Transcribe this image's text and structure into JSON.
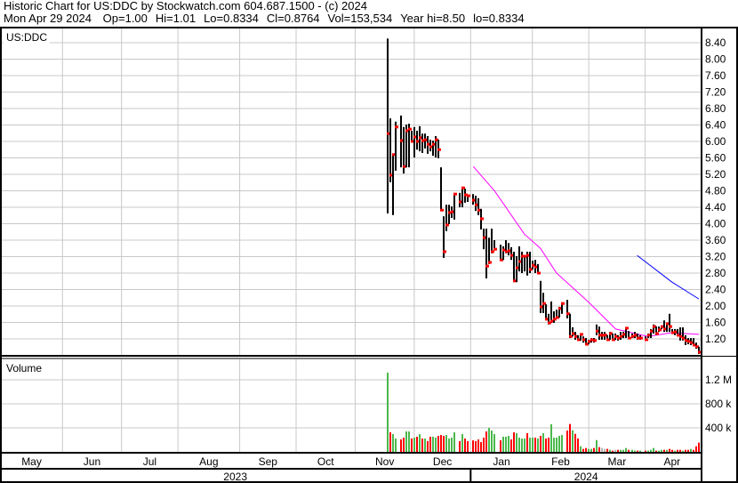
{
  "header": {
    "title": "Historic Chart for US:DDC by Stockwatch.com 604.687.1500 - (c) 2024",
    "date": "Mon Apr 29 2024",
    "open": "Op=1.00",
    "high": "Hi=1.01",
    "low": "Lo=0.8334",
    "close": "Cl=0.8764",
    "volume": "Vol=153,534",
    "year_high": "Year hi=8.50",
    "year_low": "lo=0.8334"
  },
  "symbol_label": "US:DDC",
  "volume_label": "Volume",
  "colors": {
    "grid": "#C8C8C8",
    "bar": "#000000",
    "close_tick": "#FF0000",
    "vol_up": "#4CB84C",
    "vol_down": "#FF0000",
    "vol_flat": "#B4B4B4"
  },
  "chart_data": {
    "type": "ohlc",
    "ylim": [
      0.8,
      8.75
    ],
    "volume_ylim": [
      0,
      1600000
    ],
    "grid": true,
    "price_ticks": [
      "8.40",
      "8.00",
      "7.60",
      "7.20",
      "6.80",
      "6.40",
      "6.00",
      "5.60",
      "5.20",
      "4.80",
      "4.40",
      "4.00",
      "3.60",
      "3.20",
      "2.80",
      "2.40",
      "2.00",
      "1.60",
      "1.20"
    ],
    "volume_ticks": [
      {
        "label": "1.2 M",
        "value": 1200000
      },
      {
        "label": "800 k",
        "value": 800000
      },
      {
        "label": "400 k",
        "value": 400000
      }
    ],
    "x_axis": {
      "months": [
        "May",
        "Jun",
        "Jul",
        "Aug",
        "Sep",
        "Oct",
        "Nov",
        "Dec",
        "Jan",
        "Feb",
        "Mar",
        "Apr"
      ],
      "years": [
        "2023",
        "2024"
      ]
    },
    "dates": [
      "2023-11-17",
      "2023-11-20",
      "2023-11-21",
      "2023-11-22",
      "2023-11-24",
      "2023-11-27",
      "2023-11-28",
      "2023-11-29",
      "2023-11-30",
      "2023-12-01",
      "2023-12-04",
      "2023-12-05",
      "2023-12-06",
      "2023-12-07",
      "2023-12-08",
      "2023-12-11",
      "2023-12-12",
      "2023-12-13",
      "2023-12-14",
      "2023-12-15",
      "2023-12-18",
      "2023-12-19",
      "2023-12-20",
      "2023-12-21",
      "2023-12-22",
      "2023-12-26",
      "2023-12-27",
      "2023-12-28",
      "2023-12-29",
      "2024-01-02",
      "2024-01-03",
      "2024-01-04",
      "2024-01-05",
      "2024-01-08",
      "2024-01-09",
      "2024-01-10",
      "2024-01-11",
      "2024-01-12",
      "2024-01-16",
      "2024-01-17",
      "2024-01-18",
      "2024-01-19",
      "2024-01-22",
      "2024-01-23",
      "2024-01-24",
      "2024-01-25",
      "2024-01-26",
      "2024-01-29",
      "2024-01-30",
      "2024-01-31",
      "2024-02-01",
      "2024-02-02",
      "2024-02-05",
      "2024-02-06",
      "2024-02-07",
      "2024-02-08",
      "2024-02-09",
      "2024-02-12",
      "2024-02-13",
      "2024-02-14",
      "2024-02-15",
      "2024-02-16",
      "2024-02-20",
      "2024-02-21",
      "2024-02-22",
      "2024-02-23",
      "2024-02-26",
      "2024-02-27",
      "2024-02-28",
      "2024-02-29",
      "2024-03-01",
      "2024-03-04",
      "2024-03-05",
      "2024-03-06",
      "2024-03-07",
      "2024-03-08",
      "2024-03-11",
      "2024-03-12",
      "2024-03-13",
      "2024-03-14",
      "2024-03-15",
      "2024-03-18",
      "2024-03-19",
      "2024-03-20",
      "2024-03-21",
      "2024-03-22",
      "2024-03-25",
      "2024-03-26",
      "2024-03-27",
      "2024-03-28",
      "2024-04-01",
      "2024-04-02",
      "2024-04-03",
      "2024-04-04",
      "2024-04-05",
      "2024-04-08",
      "2024-04-09",
      "2024-04-10",
      "2024-04-11",
      "2024-04-12",
      "2024-04-15",
      "2024-04-16",
      "2024-04-17",
      "2024-04-18",
      "2024-04-19",
      "2024-04-22",
      "2024-04-23",
      "2024-04-24",
      "2024-04-25",
      "2024-04-26",
      "2024-04-29"
    ],
    "high": [
      8.5,
      6.56,
      5.7,
      6.48,
      6.63,
      6.35,
      6.41,
      6.43,
      6.26,
      6.35,
      6.26,
      6.37,
      6.19,
      6.19,
      6.13,
      6.04,
      6.02,
      6.13,
      6.04,
      5.37,
      4.18,
      4.46,
      4.46,
      4.42,
      4.75,
      4.75,
      4.9,
      4.85,
      4.68,
      4.72,
      4.68,
      4.62,
      4.36,
      3.88,
      3.88,
      3.66,
      3.88,
      3.6,
      3.49,
      3.45,
      3.6,
      3.53,
      3.43,
      3.32,
      3.21,
      3.45,
      3.32,
      3.21,
      3.32,
      3.32,
      3.1,
      3.12,
      3.02,
      2.61,
      2.32,
      2.04,
      1.81,
      2.11,
      1.87,
      1.91,
      1.98,
      2.09,
      2.15,
      1.81,
      1.48,
      1.37,
      1.29,
      1.33,
      1.26,
      1.22,
      1.18,
      1.22,
      1.22,
      1.55,
      1.5,
      1.37,
      1.37,
      1.29,
      1.37,
      1.33,
      1.33,
      1.29,
      1.37,
      1.37,
      1.48,
      1.39,
      1.33,
      1.37,
      1.33,
      1.29,
      1.26,
      1.33,
      1.44,
      1.55,
      1.5,
      1.5,
      1.5,
      1.65,
      1.59,
      1.81,
      1.44,
      1.44,
      1.44,
      1.48,
      1.48,
      1.29,
      1.22,
      1.22,
      1.22,
      1.11,
      1.01
    ],
    "low": [
      4.25,
      5.01,
      4.21,
      5.29,
      5.37,
      5.22,
      5.37,
      5.37,
      5.98,
      5.61,
      5.8,
      5.76,
      5.72,
      5.83,
      5.7,
      5.76,
      5.65,
      5.61,
      5.59,
      4.31,
      3.17,
      3.82,
      3.99,
      4.14,
      4.1,
      4.4,
      4.4,
      4.51,
      4.53,
      4.46,
      4.31,
      4.21,
      3.86,
      3.38,
      2.67,
      3.02,
      3.28,
      3.38,
      3.12,
      3.12,
      3.28,
      3.23,
      3.12,
      2.58,
      2.58,
      2.84,
      2.8,
      2.84,
      2.74,
      2.8,
      2.89,
      2.8,
      2.8,
      1.83,
      1.83,
      1.65,
      1.55,
      1.59,
      1.59,
      1.7,
      1.72,
      1.81,
      1.7,
      1.22,
      1.26,
      1.18,
      1.16,
      1.16,
      1.11,
      1.05,
      1.07,
      1.11,
      1.11,
      1.29,
      1.18,
      1.18,
      1.18,
      1.16,
      1.18,
      1.16,
      1.18,
      1.16,
      1.18,
      1.22,
      1.22,
      1.22,
      1.22,
      1.22,
      1.18,
      1.18,
      1.16,
      1.22,
      1.22,
      1.33,
      1.29,
      1.37,
      1.44,
      1.37,
      1.37,
      1.37,
      1.33,
      1.29,
      1.26,
      1.16,
      1.16,
      1.05,
      1.07,
      1.05,
      1.05,
      0.96,
      0.8334
    ],
    "close": [
      6.19,
      5.18,
      5.68,
      6.35,
      6.02,
      5.39,
      6.26,
      6.3,
      6.0,
      6.11,
      6.0,
      6.09,
      6.02,
      6.04,
      5.93,
      5.87,
      5.93,
      6.04,
      5.8,
      4.33,
      3.32,
      3.97,
      4.27,
      4.29,
      4.72,
      4.53,
      4.87,
      4.7,
      4.68,
      4.57,
      4.46,
      4.33,
      4.12,
      3.66,
      2.97,
      3.06,
      3.32,
      3.38,
      3.12,
      3.36,
      3.32,
      3.34,
      3.23,
      2.61,
      2.93,
      3.08,
      3.21,
      3.21,
      3.23,
      2.89,
      2.99,
      2.95,
      2.8,
      1.98,
      2.06,
      1.68,
      1.59,
      1.63,
      1.68,
      1.72,
      1.94,
      2.06,
      1.81,
      1.26,
      1.33,
      1.26,
      1.18,
      1.31,
      1.18,
      1.07,
      1.14,
      1.18,
      1.16,
      1.39,
      1.29,
      1.29,
      1.29,
      1.18,
      1.33,
      1.18,
      1.26,
      1.22,
      1.26,
      1.31,
      1.46,
      1.22,
      1.26,
      1.29,
      1.22,
      1.22,
      1.18,
      1.29,
      1.39,
      1.5,
      1.33,
      1.42,
      1.5,
      1.44,
      1.57,
      1.5,
      1.35,
      1.37,
      1.29,
      1.26,
      1.22,
      1.16,
      1.14,
      1.11,
      1.05,
      1.01,
      0.8764
    ],
    "volume": [
      1320000,
      325000,
      296000,
      222000,
      207000,
      237000,
      340000,
      340000,
      222000,
      237000,
      252000,
      296000,
      222000,
      222000,
      178000,
      252000,
      252000,
      237000,
      266000,
      281000,
      266000,
      281000,
      222000,
      237000,
      325000,
      178000,
      296000,
      222000,
      178000,
      192000,
      178000,
      207000,
      163000,
      237000,
      340000,
      400000,
      355000,
      296000,
      192000,
      252000,
      252000,
      266000,
      207000,
      325000,
      311000,
      237000,
      222000,
      222000,
      311000,
      237000,
      237000,
      237000,
      222000,
      266000,
      311000,
      222000,
      237000,
      459000,
      237000,
      237000,
      266000,
      281000,
      355000,
      464000,
      360000,
      300000,
      225000,
      93000,
      49000,
      64000,
      49000,
      49000,
      64000,
      196000,
      78000,
      64000,
      49000,
      49000,
      34000,
      20000,
      34000,
      34000,
      34000,
      34000,
      64000,
      34000,
      34000,
      20000,
      20000,
      20000,
      20000,
      20000,
      34000,
      64000,
      20000,
      20000,
      34000,
      34000,
      34000,
      49000,
      34000,
      20000,
      34000,
      34000,
      20000,
      34000,
      34000,
      49000,
      34000,
      93000,
      153534
    ],
    "direction": [
      "u",
      "d",
      "u",
      "u",
      "d",
      "d",
      "u",
      "u",
      "d",
      "u",
      "d",
      "u",
      "d",
      "u",
      "d",
      "d",
      "u",
      "u",
      "d",
      "d",
      "d",
      "u",
      "u",
      "u",
      "u",
      "d",
      "u",
      "d",
      "d",
      "d",
      "d",
      "d",
      "d",
      "d",
      "d",
      "u",
      "u",
      "u",
      "d",
      "u",
      "u",
      "u",
      "d",
      "d",
      "u",
      "u",
      "u",
      "u",
      "d",
      "u",
      "u",
      "d",
      "u",
      "d",
      "u",
      "d",
      "d",
      "u",
      "u",
      "u",
      "u",
      "u",
      "d",
      "d",
      "u",
      "d",
      "d",
      "u",
      "d",
      "d",
      "u",
      "u",
      "d",
      "u",
      "d",
      "f",
      "f",
      "d",
      "u",
      "d",
      "f",
      "d",
      "u",
      "u",
      "u",
      "d",
      "u",
      "u",
      "d",
      "u",
      "d",
      "u",
      "u",
      "u",
      "d",
      "u",
      "u",
      "d",
      "u",
      "d",
      "d",
      "u",
      "d",
      "d",
      "u",
      "d",
      "d",
      "u",
      "d",
      "d",
      "d"
    ],
    "moving_averages": [
      {
        "color": "#FF00FF",
        "points": [
          [
            "2024-01-02",
            5.39
          ],
          [
            "2024-01-12",
            4.79
          ],
          [
            "2024-01-29",
            3.75
          ],
          [
            "2024-02-06",
            3.4
          ],
          [
            "2024-02-14",
            2.8
          ],
          [
            "2024-03-01",
            2.09
          ],
          [
            "2024-03-15",
            1.44
          ],
          [
            "2024-04-02",
            1.26
          ],
          [
            "2024-04-15",
            1.35
          ],
          [
            "2024-04-29",
            1.31
          ]
        ]
      },
      {
        "color": "#0000FF",
        "points": [
          [
            "2024-03-27",
            3.23
          ],
          [
            "2024-04-15",
            2.58
          ],
          [
            "2024-04-29",
            2.17
          ]
        ]
      }
    ]
  }
}
